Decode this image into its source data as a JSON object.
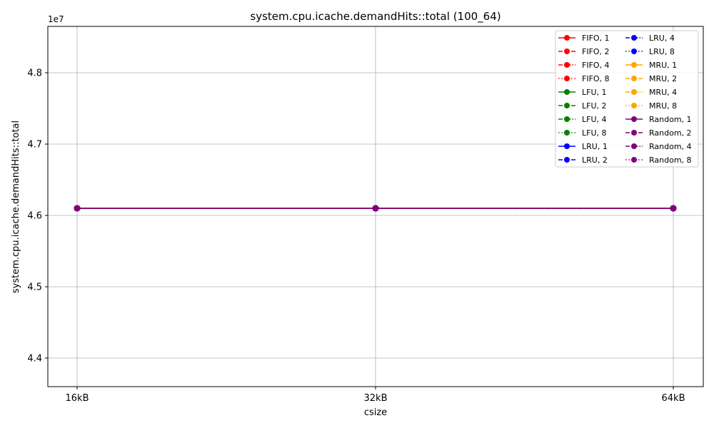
{
  "chart_data": {
    "type": "line",
    "title": "system.cpu.icache.demandHits::total (100_64)",
    "xlabel": "csize",
    "ylabel": "system.cpu.icache.demandHits::total",
    "y_offset_label": "1e7",
    "y_scale": 10000000,
    "categories": [
      "16kB",
      "32kB",
      "64kB"
    ],
    "ylim": [
      43600000,
      48650000
    ],
    "yticks": [
      44000000,
      45000000,
      46000000,
      47000000,
      48000000
    ],
    "ytick_labels": [
      "4.4",
      "4.5",
      "4.6",
      "4.7",
      "4.8"
    ],
    "grid": true,
    "legend_position": "top-right",
    "legend_columns": 2,
    "series": [
      {
        "name": "FIFO, 1",
        "color": "#ff0000",
        "dash": "solid",
        "values": [
          46100000,
          46100000,
          46100000
        ]
      },
      {
        "name": "FIFO, 2",
        "color": "#ff0000",
        "dash": "dashed",
        "values": [
          46100000,
          46100000,
          46100000
        ]
      },
      {
        "name": "FIFO, 4",
        "color": "#ff0000",
        "dash": "dashdot",
        "values": [
          46100000,
          46100000,
          46100000
        ]
      },
      {
        "name": "FIFO, 8",
        "color": "#ff0000",
        "dash": "dotted",
        "values": [
          46100000,
          46100000,
          46100000
        ]
      },
      {
        "name": "LFU, 1",
        "color": "#008000",
        "dash": "solid",
        "values": [
          46100000,
          46100000,
          46100000
        ]
      },
      {
        "name": "LFU, 2",
        "color": "#008000",
        "dash": "dashed",
        "values": [
          46100000,
          46100000,
          46100000
        ]
      },
      {
        "name": "LFU, 4",
        "color": "#008000",
        "dash": "dashdot",
        "values": [
          46100000,
          46100000,
          46100000
        ]
      },
      {
        "name": "LFU, 8",
        "color": "#008000",
        "dash": "dotted",
        "values": [
          46100000,
          46100000,
          46100000
        ]
      },
      {
        "name": "LRU, 1",
        "color": "#0000ff",
        "dash": "solid",
        "values": [
          46100000,
          46100000,
          46100000
        ]
      },
      {
        "name": "LRU, 2",
        "color": "#0000ff",
        "dash": "dashed",
        "values": [
          46100000,
          46100000,
          46100000
        ]
      },
      {
        "name": "LRU, 4",
        "color": "#0000ff",
        "dash": "dashdot",
        "values": [
          46100000,
          46100000,
          46100000
        ]
      },
      {
        "name": "LRU, 8",
        "color": "#0000ff",
        "dash": "dotted",
        "values": [
          46100000,
          46100000,
          46100000
        ]
      },
      {
        "name": "MRU, 1",
        "color": "#ffa500",
        "dash": "solid",
        "values": [
          46100000,
          46100000,
          46100000
        ]
      },
      {
        "name": "MRU, 2",
        "color": "#ffa500",
        "dash": "dashed",
        "values": [
          46100000,
          46100000,
          46100000
        ]
      },
      {
        "name": "MRU, 4",
        "color": "#ffa500",
        "dash": "dashdot",
        "values": [
          46100000,
          46100000,
          46100000
        ]
      },
      {
        "name": "MRU, 8",
        "color": "#ffa500",
        "dash": "dotted",
        "values": [
          46100000,
          46100000,
          46100000
        ]
      },
      {
        "name": "Random, 1",
        "color": "#800080",
        "dash": "solid",
        "values": [
          46100000,
          46100000,
          46100000
        ]
      },
      {
        "name": "Random, 2",
        "color": "#800080",
        "dash": "dashed",
        "values": [
          46100000,
          46100000,
          46100000
        ]
      },
      {
        "name": "Random, 4",
        "color": "#800080",
        "dash": "dashdot",
        "values": [
          46100000,
          46100000,
          46100000
        ]
      },
      {
        "name": "Random, 8",
        "color": "#800080",
        "dash": "dotted",
        "values": [
          46100000,
          46100000,
          46100000
        ]
      }
    ]
  }
}
